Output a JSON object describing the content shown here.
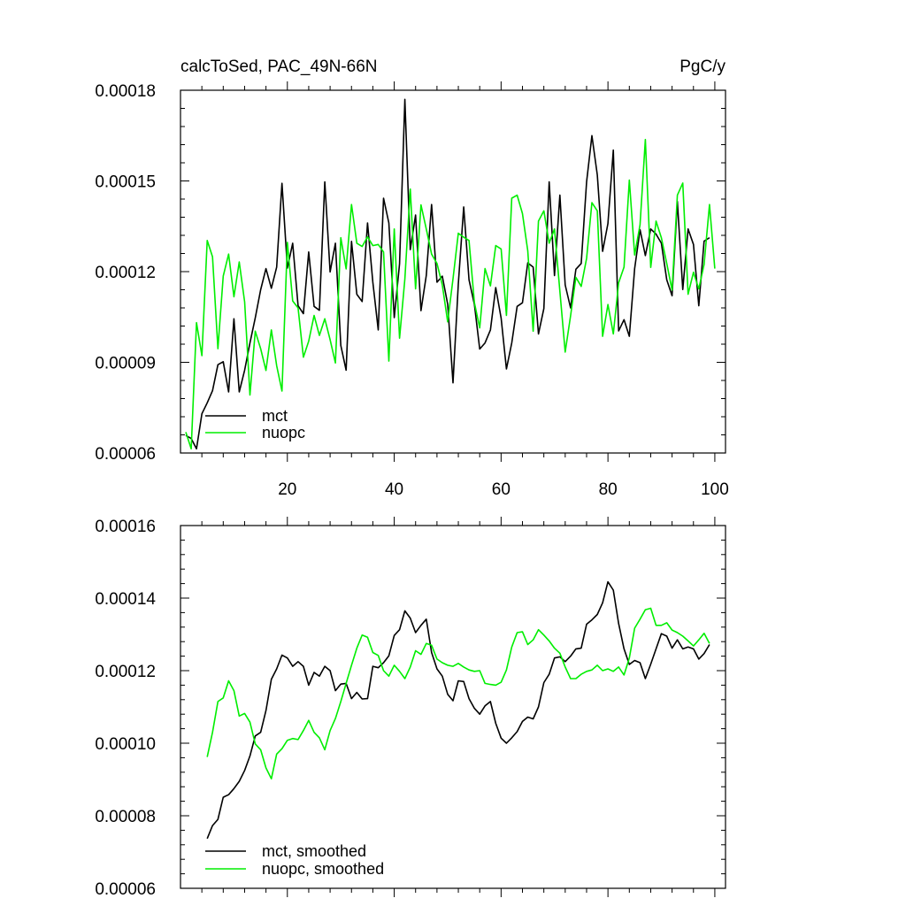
{
  "colors": {
    "mct": "#000000",
    "nuopc": "#00ee00"
  },
  "chart_data": [
    {
      "type": "line",
      "title_left": "calcToSed, PAC_49N-66N",
      "title_right": "PgC/y",
      "xlim": [
        0,
        102
      ],
      "ylim": [
        6e-05,
        0.00018
      ],
      "xticks": [
        20,
        40,
        60,
        80,
        100
      ],
      "xtick_labels": [
        "20",
        "40",
        "60",
        "80",
        "100"
      ],
      "yticks": [
        6e-05,
        9e-05,
        0.00012,
        0.00015,
        0.00018
      ],
      "ytick_labels": [
        "0.00006",
        "0.00009",
        "0.00012",
        "0.00015",
        "0.00018"
      ],
      "x_start": 1,
      "legend_position": "bottom-left",
      "series": [
        {
          "name": "mct",
          "color_key": "mct",
          "values": [
            6.58e-05,
            6.48e-05,
            6.14e-05,
            7.3e-05,
            7.66e-05,
            8.06e-05,
            8.92e-05,
            9.02e-05,
            8.02e-05,
            0.0001044,
            8.02e-05,
            8.74e-05,
            9.64e-05,
            0.0001047,
            0.000114,
            0.000121,
            0.0001145,
            0.0001215,
            0.0001492,
            0.0001212,
            0.0001294,
            0.0001087,
            0.0001061,
            0.0001265,
            0.0001085,
            0.0001072,
            0.0001497,
            0.0001199,
            0.0001294,
            9.56e-05,
            8.74e-05,
            0.00013,
            0.0001125,
            0.0001101,
            0.0001361,
            0.0001165,
            0.0001007,
            0.0001443,
            0.0001361,
            0.0001048,
            0.0001226,
            0.000177,
            0.0001273,
            0.0001387,
            0.0001071,
            0.0001187,
            0.0001422,
            0.0001165,
            0.0001185,
            0.0001092,
            8.32e-05,
            0.0001159,
            0.0001414,
            0.0001173,
            0.0001091,
            9.44e-05,
            9.64e-05,
            0.0001007,
            0.0001147,
            0.0001046,
            8.78e-05,
            9.64e-05,
            0.0001085,
            0.0001097,
            0.0001229,
            0.0001215,
            9.94e-05,
            0.0001078,
            0.0001497,
            0.0001187,
            0.0001453,
            0.0001156,
            0.000108,
            0.0001208,
            0.0001227,
            0.0001497,
            0.000165,
            0.000152,
            0.0001267,
            0.0001359,
            0.0001602,
            0.0001004,
            0.0001041,
            9.86e-05,
            0.000121,
            0.0001339,
            0.0001253,
            0.0001341,
            0.0001324,
            0.0001294,
            0.0001173,
            0.000112,
            0.0001432,
            0.0001141,
            0.0001341,
            0.000129,
            0.0001087,
            0.0001301,
            0.0001312
          ]
        },
        {
          "name": "nuopc",
          "color_key": "nuopc",
          "values": [
            6.69e-05,
            6.14e-05,
            0.0001031,
            9.22e-05,
            0.0001303,
            0.0001249,
            9.45e-05,
            0.0001185,
            0.0001258,
            0.0001117,
            0.0001232,
            0.00011,
            7.92e-05,
            0.0001003,
            9.45e-05,
            8.73e-05,
            0.0001007,
            8.89e-05,
            8.05e-05,
            0.0001297,
            0.0001103,
            0.000108,
            9.17e-05,
            9.7e-05,
            0.0001055,
            9.89e-05,
            0.0001044,
            9.75e-05,
            8.98e-05,
            0.0001312,
            0.0001209,
            0.0001422,
            0.0001294,
            0.0001283,
            0.0001315,
            0.0001286,
            0.000129,
            0.0001265,
            9.04e-05,
            0.0001341,
            9.8e-05,
            0.0001176,
            0.0001473,
            0.0001143,
            0.0001421,
            0.0001341,
            0.0001258,
            0.0001227,
            0.0001156,
            0.0001034,
            0.0001176,
            0.0001327,
            0.0001314,
            0.0001303,
            0.0001097,
            0.0001014,
            0.000121,
            0.0001153,
            0.0001286,
            0.0001275,
            0.0001055,
            0.0001443,
            0.0001453,
            0.0001392,
            0.0001269,
            0.0001003,
            0.0001367,
            0.0001401,
            0.0001294,
            0.0001341,
            0.0001135,
            9.34e-05,
            0.0001054,
            0.0001181,
            0.0001151,
            0.0001244,
            0.0001428,
            0.0001401,
            9.86e-05,
            0.0001091,
            9.94e-05,
            0.0001163,
            0.0001215,
            0.0001503,
            0.0001255,
            0.0001355,
            0.0001637,
            0.0001214,
            0.0001367,
            0.0001312,
            0.0001227,
            0.0001139,
            0.0001453,
            0.0001493,
            0.0001125,
            0.0001198,
            0.0001143,
            0.0001224,
            0.0001422,
            0.000121
          ]
        }
      ]
    },
    {
      "type": "line",
      "xlim": [
        0,
        102
      ],
      "ylim": [
        6e-05,
        0.00016
      ],
      "xticks": [
        20,
        40,
        60,
        80,
        100
      ],
      "yticks": [
        6e-05,
        8e-05,
        0.0001,
        0.00012,
        0.00014,
        0.00016
      ],
      "ytick_labels": [
        "0.00006",
        "0.00008",
        "0.00010",
        "0.00012",
        "0.00014",
        "0.00016"
      ],
      "x_start": 5,
      "legend_position": "bottom-left",
      "series": [
        {
          "name": "mct, smoothed",
          "color_key": "mct",
          "values": [
            7.37e-05,
            7.73e-05,
            7.9e-05,
            8.51e-05,
            8.58e-05,
            8.75e-05,
            8.95e-05,
            9.25e-05,
            9.65e-05,
            0.000102,
            0.000103,
            0.000109,
            0.0001176,
            0.0001205,
            0.0001243,
            0.0001235,
            0.0001212,
            0.0001225,
            0.0001212,
            0.000116,
            0.0001195,
            0.0001185,
            0.0001212,
            0.00012,
            0.0001145,
            0.0001163,
            0.0001165,
            0.0001123,
            0.000114,
            0.0001122,
            0.0001123,
            0.0001212,
            0.0001208,
            0.0001222,
            0.0001241,
            0.0001297,
            0.0001313,
            0.0001365,
            0.0001345,
            0.0001305,
            0.0001325,
            0.0001342,
            0.000125,
            0.0001205,
            0.0001185,
            0.0001135,
            0.0001117,
            0.0001172,
            0.000117,
            0.0001123,
            0.0001096,
            0.000108,
            0.0001103,
            0.0001115,
            0.0001055,
            0.0001014,
            0.0001,
            0.0001015,
            0.0001032,
            0.000106,
            0.0001072,
            0.0001067,
            0.00011,
            0.0001167,
            0.000119,
            0.0001235,
            0.0001238,
            0.0001225,
            0.000124,
            0.000126,
            0.0001262,
            0.0001328,
            0.000134,
            0.0001355,
            0.0001387,
            0.0001445,
            0.0001422,
            0.000133,
            0.000126,
            0.0001217,
            0.0001228,
            0.0001222,
            0.0001178,
            0.0001218,
            0.000126,
            0.0001302,
            0.0001295,
            0.0001262,
            0.0001285,
            0.000126,
            0.0001265,
            0.000126,
            0.0001232,
            0.0001247,
            0.0001272
          ]
        },
        {
          "name": "nuopc, smoothed",
          "color_key": "nuopc",
          "values": [
            9.62e-05,
            0.000103,
            0.0001115,
            0.0001125,
            0.0001172,
            0.0001145,
            0.0001075,
            0.0001082,
            0.0001058,
            9.98e-05,
            9.82e-05,
            9.32e-05,
            9.02e-05,
            9.7e-05,
            9.85e-05,
            0.0001008,
            0.0001013,
            0.000101,
            0.0001035,
            0.0001063,
            0.000103,
            0.0001015,
            9.82e-05,
            0.0001035,
            0.0001068,
            0.0001115,
            0.0001165,
            0.0001215,
            0.0001262,
            0.0001298,
            0.0001292,
            0.000125,
            0.0001242,
            0.00012,
            0.0001185,
            0.0001215,
            0.0001198,
            0.0001178,
            0.000121,
            0.0001255,
            0.0001245,
            0.0001275,
            0.000127,
            0.0001232,
            0.0001222,
            0.0001215,
            0.0001212,
            0.000122,
            0.000121,
            0.0001202,
            0.0001198,
            0.00012,
            0.0001165,
            0.0001162,
            0.000116,
            0.0001168,
            0.0001202,
            0.0001265,
            0.0001305,
            0.0001307,
            0.0001272,
            0.0001285,
            0.0001313,
            0.0001298,
            0.0001282,
            0.0001262,
            0.0001248,
            0.000121,
            0.0001178,
            0.0001178,
            0.000119,
            0.0001198,
            0.0001202,
            0.0001215,
            0.00012,
            0.0001205,
            0.0001198,
            0.000121,
            0.0001188,
            0.0001235,
            0.0001317,
            0.0001342,
            0.0001368,
            0.0001372,
            0.0001325,
            0.0001325,
            0.0001332,
            0.0001312,
            0.0001305,
            0.0001295,
            0.0001282,
            0.0001268,
            0.0001285,
            0.0001303,
            0.0001275
          ]
        }
      ]
    }
  ]
}
